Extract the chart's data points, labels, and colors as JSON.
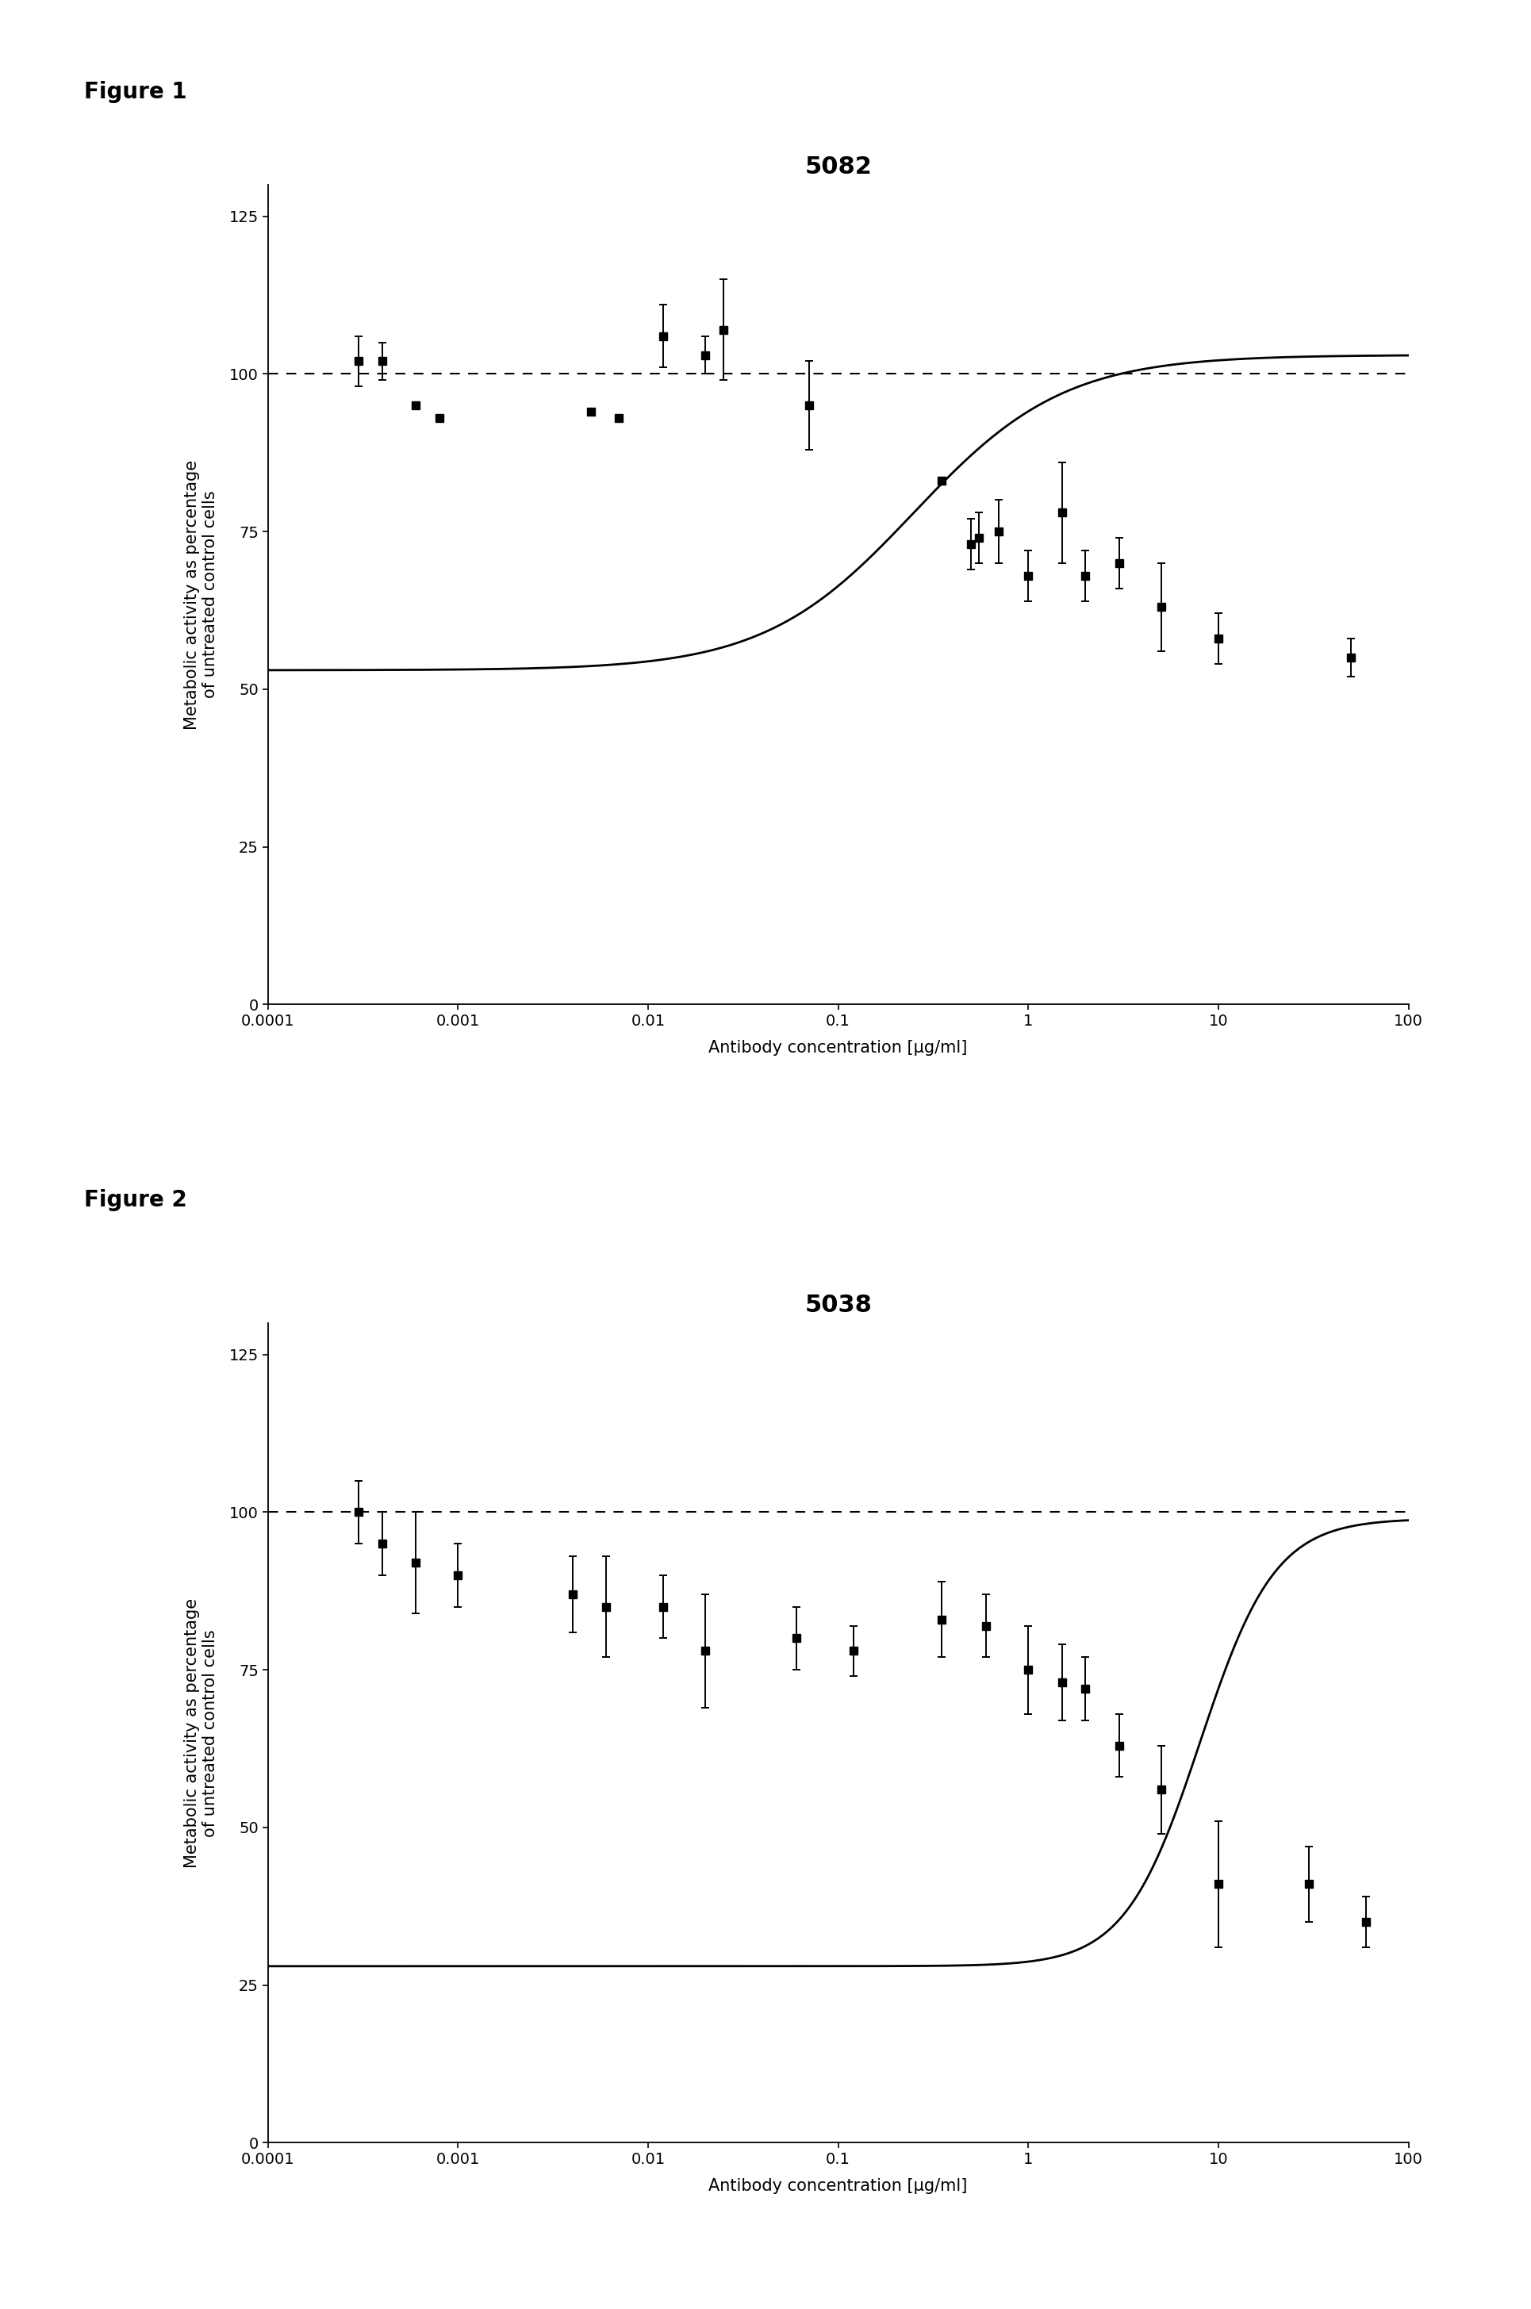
{
  "fig1_title": "5082",
  "fig2_title": "5038",
  "ylabel": "Metabolic activity as percentage\nof untreated control cells",
  "xlabel": "Antibody concentration [µg/ml]",
  "figure_label_1": "Figure 1",
  "figure_label_2": "Figure 2",
  "fig1_x": [
    0.0003,
    0.0004,
    0.0006,
    0.0008,
    0.005,
    0.007,
    0.012,
    0.02,
    0.025,
    0.07,
    0.35,
    0.5,
    0.55,
    0.7,
    1.0,
    1.5,
    2.0,
    3.0,
    5.0,
    10.0,
    50.0
  ],
  "fig1_y": [
    102,
    102,
    95,
    93,
    94,
    93,
    106,
    103,
    107,
    95,
    83,
    73,
    74,
    75,
    68,
    78,
    68,
    70,
    63,
    58,
    55
  ],
  "fig1_yerr": [
    4,
    3,
    0,
    0,
    0,
    0,
    5,
    3,
    8,
    7,
    0,
    4,
    4,
    5,
    4,
    8,
    4,
    4,
    7,
    4,
    3
  ],
  "fig2_x": [
    0.0003,
    0.0004,
    0.0006,
    0.001,
    0.004,
    0.006,
    0.012,
    0.02,
    0.06,
    0.12,
    0.35,
    0.6,
    1.0,
    1.5,
    2.0,
    3.0,
    5.0,
    10.0,
    30.0,
    60.0
  ],
  "fig2_y": [
    100,
    95,
    92,
    90,
    87,
    85,
    85,
    78,
    80,
    78,
    83,
    82,
    75,
    73,
    72,
    63,
    56,
    41,
    41,
    35
  ],
  "fig2_yerr": [
    5,
    5,
    8,
    5,
    6,
    8,
    5,
    9,
    5,
    4,
    6,
    5,
    7,
    6,
    5,
    5,
    7,
    10,
    6,
    4
  ],
  "ylim": [
    0,
    130
  ],
  "yticks": [
    0,
    25,
    50,
    75,
    100,
    125
  ],
  "xlim_min": 0.0001,
  "xlim_max": 100,
  "dashed_y": 100,
  "marker": "s",
  "markersize": 7,
  "color": "#000000",
  "background": "#ffffff",
  "title_fontsize": 22,
  "label_fontsize": 15,
  "tick_fontsize": 14,
  "fig_label_fontsize": 20,
  "fig1_curve_params": [
    103,
    53,
    0.25,
    1.1
  ],
  "fig2_curve_params": [
    99,
    28,
    8.0,
    2.2
  ]
}
